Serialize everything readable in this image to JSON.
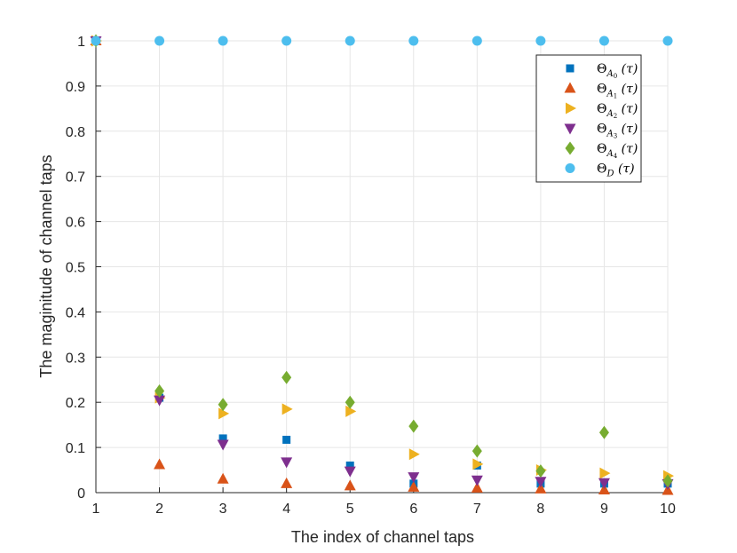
{
  "chart_data": {
    "type": "scatter",
    "xlabel": "The index of channel taps",
    "ylabel": "The maginitude of channel taps",
    "xlim": [
      1,
      10
    ],
    "ylim": [
      0,
      1
    ],
    "x_ticks": [
      "1",
      "2",
      "3",
      "4",
      "5",
      "6",
      "7",
      "8",
      "9",
      "10"
    ],
    "y_ticks": [
      "0",
      "0.1",
      "0.2",
      "0.3",
      "0.4",
      "0.5",
      "0.6",
      "0.7",
      "0.8",
      "0.9",
      "1"
    ],
    "grid": true,
    "legend_position": "top-right",
    "series": [
      {
        "name": "Θ_{A0}(τ)",
        "label_main": "Θ",
        "label_sub": "A",
        "label_subsub": "0",
        "label_arg": " (τ)",
        "marker": "square",
        "color": "#0072BD",
        "x": [
          1,
          2,
          3,
          4,
          5,
          6,
          7,
          8,
          9,
          10
        ],
        "values": [
          1.0,
          0.21,
          0.12,
          0.117,
          0.06,
          0.02,
          0.06,
          0.02,
          0.02,
          0.02
        ]
      },
      {
        "name": "Θ_{A1}(τ)",
        "label_main": "Θ",
        "label_sub": "A",
        "label_subsub": "1",
        "label_arg": " (τ)",
        "marker": "triangle-up",
        "color": "#D95319",
        "x": [
          1,
          2,
          3,
          4,
          5,
          6,
          7,
          8,
          9,
          10
        ],
        "values": [
          1.0,
          0.062,
          0.03,
          0.02,
          0.015,
          0.012,
          0.01,
          0.008,
          0.006,
          0.005
        ]
      },
      {
        "name": "Θ_{A2}(τ)",
        "label_main": "Θ",
        "label_sub": "A",
        "label_subsub": "2",
        "label_arg": " (τ)",
        "marker": "triangle-right",
        "color": "#EDB120",
        "x": [
          1,
          2,
          3,
          4,
          5,
          6,
          7,
          8,
          9,
          10
        ],
        "values": [
          1.0,
          0.21,
          0.175,
          0.185,
          0.18,
          0.085,
          0.063,
          0.05,
          0.043,
          0.037
        ]
      },
      {
        "name": "Θ_{A3}(τ)",
        "label_main": "Θ",
        "label_sub": "A",
        "label_subsub": "3",
        "label_arg": " (τ)",
        "marker": "triangle-down",
        "color": "#7E2F8E",
        "x": [
          1,
          2,
          3,
          4,
          5,
          6,
          7,
          8,
          9,
          10
        ],
        "values": [
          1.0,
          0.205,
          0.107,
          0.068,
          0.048,
          0.035,
          0.028,
          0.025,
          0.022,
          0.02
        ]
      },
      {
        "name": "Θ_{A4}(τ)",
        "label_main": "Θ",
        "label_sub": "A",
        "label_subsub": "4",
        "label_arg": " (τ)",
        "marker": "diamond",
        "color": "#77AC30",
        "x": [
          1,
          2,
          3,
          4,
          5,
          6,
          7,
          8,
          9,
          10
        ],
        "values": [
          1.0,
          0.225,
          0.195,
          0.255,
          0.2,
          0.147,
          0.092,
          0.048,
          0.133,
          0.026
        ]
      },
      {
        "name": "Θ_D(τ)",
        "label_main": "Θ",
        "label_sub": "D",
        "label_subsub": "",
        "label_arg": " (τ)",
        "marker": "circle",
        "color": "#4DBEEE",
        "x": [
          1,
          2,
          3,
          4,
          5,
          6,
          7,
          8,
          9,
          10
        ],
        "values": [
          1,
          1,
          1,
          1,
          1,
          1,
          1,
          1,
          1,
          1
        ]
      }
    ]
  }
}
